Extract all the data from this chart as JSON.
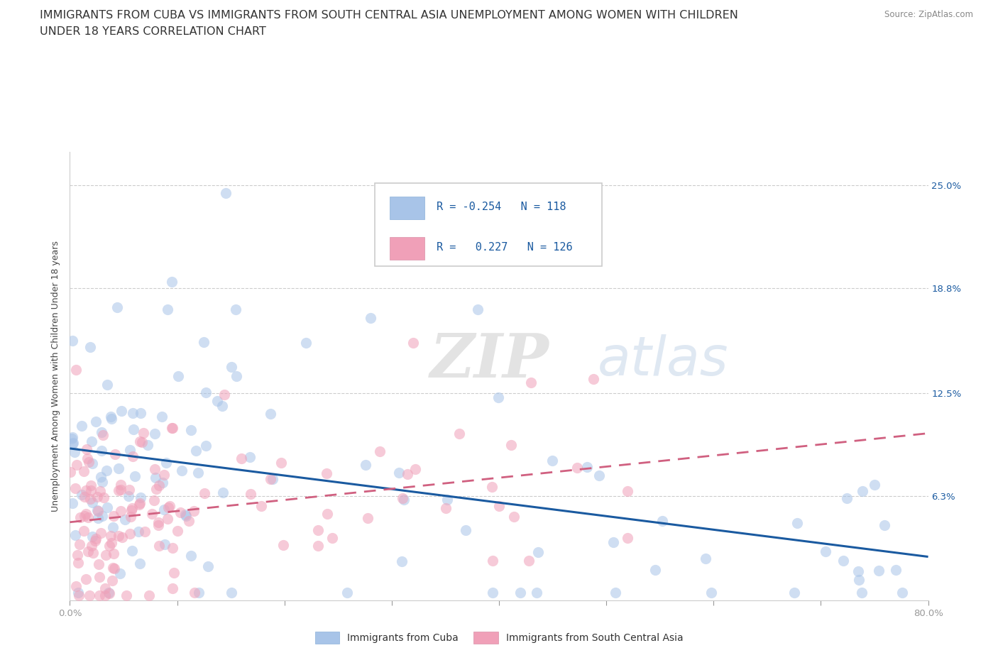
{
  "title_line1": "IMMIGRANTS FROM CUBA VS IMMIGRANTS FROM SOUTH CENTRAL ASIA UNEMPLOYMENT AMONG WOMEN WITH CHILDREN",
  "title_line2": "UNDER 18 YEARS CORRELATION CHART",
  "source": "Source: ZipAtlas.com",
  "ylabel": "Unemployment Among Women with Children Under 18 years",
  "xlim": [
    0.0,
    0.8
  ],
  "ylim": [
    0.0,
    0.27
  ],
  "yticks": [
    0.063,
    0.125,
    0.188,
    0.25
  ],
  "ytick_labels": [
    "6.3%",
    "12.5%",
    "18.8%",
    "25.0%"
  ],
  "xticks": [
    0.0,
    0.1,
    0.2,
    0.3,
    0.4,
    0.5,
    0.6,
    0.7,
    0.8
  ],
  "watermark_zip": "ZIP",
  "watermark_atlas": "atlas",
  "legend_r1": "R = -0.254",
  "legend_n1": "N = 118",
  "legend_r2": "R =   0.227",
  "legend_n2": "N = 126",
  "color_cuba": "#a8c4e8",
  "color_asia": "#f0a0b8",
  "line_color_cuba": "#1a5aa0",
  "line_color_asia": "#d06080",
  "background_color": "#ffffff",
  "title_fontsize": 11.5,
  "axis_label_fontsize": 9,
  "tick_fontsize": 9.5,
  "legend_fontsize": 11
}
